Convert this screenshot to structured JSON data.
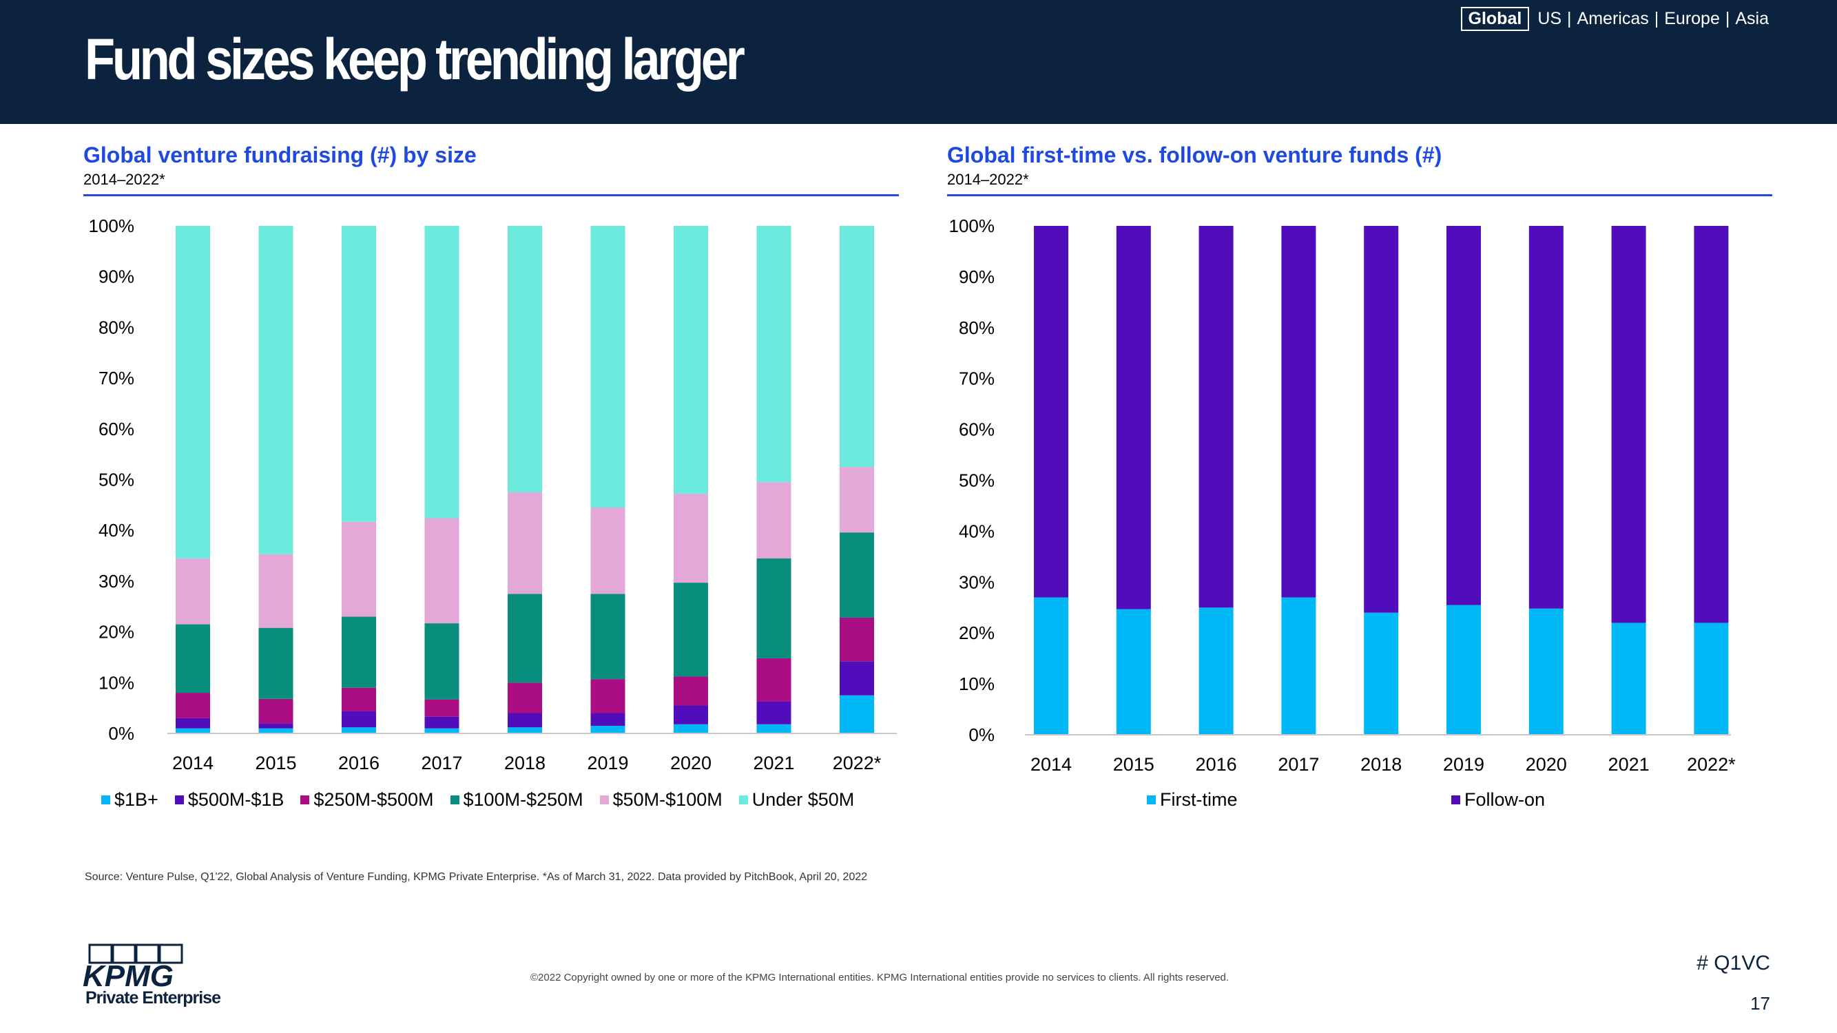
{
  "page": {
    "title": "Fund sizes keep trending larger",
    "region_nav": {
      "selected": "Global",
      "options": [
        "US",
        "Americas",
        "Europe",
        "Asia"
      ],
      "separator": "|"
    },
    "source": "Source: Venture Pulse, Q1'22, Global Analysis of Venture Funding, KPMG Private Enterprise. *As of March 31, 2022. Data provided by PitchBook, April 20, 2022",
    "copyright": "©2022 Copyright owned by one or more of the KPMG International entities. KPMG International entities provide no services to clients. All rights reserved.",
    "hashtag": "# Q1VC",
    "page_number": "17",
    "logo": {
      "name": "KPMG",
      "subtitle": "Private Enterprise"
    },
    "colors": {
      "header_bg": "#0c233f",
      "accent": "#1e49e2"
    }
  },
  "chart_data": [
    {
      "type": "bar",
      "stacked": true,
      "title": "Global venture fundraising (#) by size",
      "subtitle": "2014–2022*",
      "categories": [
        "2014",
        "2015",
        "2016",
        "2017",
        "2018",
        "2019",
        "2020",
        "2021",
        "2022*"
      ],
      "y_ticks": [
        "0%",
        "10%",
        "20%",
        "30%",
        "40%",
        "50%",
        "60%",
        "70%",
        "80%",
        "90%",
        "100%"
      ],
      "ylim": [
        0,
        100
      ],
      "series": [
        {
          "name": "$1B+",
          "color": "#00b8f5",
          "values": [
            1,
            1,
            1.2,
            1,
            1.2,
            1.5,
            1.8,
            1.8,
            7.5
          ]
        },
        {
          "name": "$500M-$1B",
          "color": "#510dbc",
          "values": [
            2,
            1,
            3.2,
            2.3,
            2.8,
            2.5,
            3.7,
            4.5,
            6.7
          ]
        },
        {
          "name": "$250M-$500M",
          "color": "#ab0d82",
          "values": [
            5,
            4.8,
            4.6,
            3.4,
            6,
            6.7,
            5.7,
            8.5,
            8.6
          ]
        },
        {
          "name": "$100M-$250M",
          "color": "#098e7e",
          "values": [
            13.5,
            14,
            14,
            15,
            17.5,
            16.8,
            18.5,
            19.7,
            16.8
          ]
        },
        {
          "name": "$50M-$100M",
          "color": "#e3a7d8",
          "values": [
            13,
            14.5,
            18.7,
            20.7,
            20,
            17,
            17.5,
            15,
            12.9
          ]
        },
        {
          "name": "Under $50M",
          "color": "#6beadd",
          "values": [
            65.5,
            64.7,
            58.3,
            57.6,
            52.5,
            55.5,
            52.8,
            50.5,
            47.5
          ]
        }
      ]
    },
    {
      "type": "bar",
      "stacked": true,
      "title": "Global first-time vs. follow-on venture funds (#)",
      "subtitle": "2014–2022*",
      "categories": [
        "2014",
        "2015",
        "2016",
        "2017",
        "2018",
        "2019",
        "2020",
        "2021",
        "2022*"
      ],
      "y_ticks": [
        "0%",
        "10%",
        "20%",
        "30%",
        "40%",
        "50%",
        "60%",
        "70%",
        "80%",
        "90%",
        "100%"
      ],
      "ylim": [
        0,
        100
      ],
      "series": [
        {
          "name": "First-time",
          "color": "#00b8f5",
          "values": [
            27,
            24.7,
            25,
            27,
            24,
            25.5,
            24.8,
            22,
            22
          ]
        },
        {
          "name": "Follow-on",
          "color": "#510dbc",
          "values": [
            73,
            75.3,
            75,
            73,
            76,
            74.5,
            75.2,
            78,
            78
          ]
        }
      ]
    }
  ]
}
